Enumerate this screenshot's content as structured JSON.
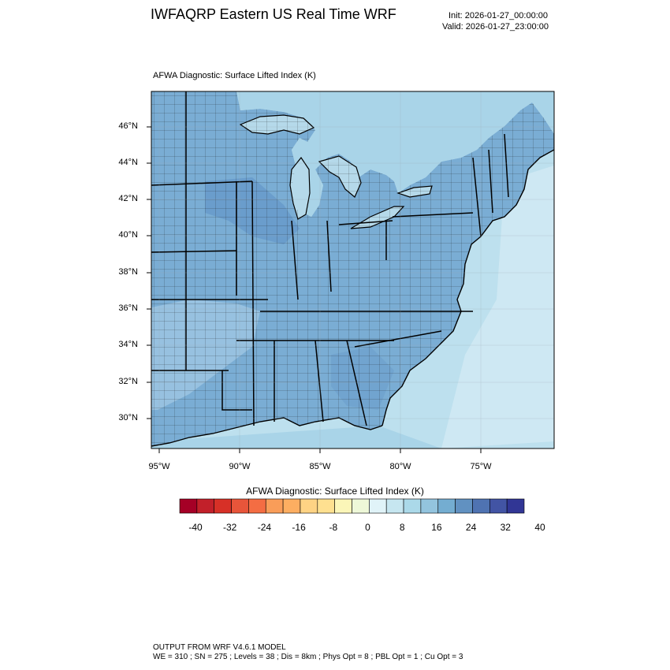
{
  "header": {
    "title": "IWFAQRP Eastern US Real Time WRF",
    "init": "Init: 2026-01-27_00:00:00",
    "valid": "Valid: 2026-01-27_23:00:00"
  },
  "panel_title": "AFWA Diagnostic: Surface Lifted Index   (K)",
  "map": {
    "field": "Surface Lifted Index",
    "lat_labels": [
      "46°N",
      "44°N",
      "42°N",
      "40°N",
      "38°N",
      "36°N",
      "34°N",
      "32°N",
      "30°N"
    ],
    "lon_labels": [
      "95°W",
      "90°W",
      "85°W",
      "80°W",
      "75°W"
    ],
    "colors": {
      "ocean": "#bde0ee",
      "ocean_deep": "#a9d4e8",
      "land_stable": "#7aadd4",
      "land_light": "#b5d9ea",
      "outline": "#000000"
    }
  },
  "colorbar": {
    "title": "AFWA Diagnostic: Surface Lifted Index  (K)",
    "labels": [
      "-40",
      "-32",
      "-24",
      "-16",
      "-8",
      "0",
      "8",
      "16",
      "24",
      "32",
      "40"
    ],
    "colors": [
      "#a50026",
      "#c2202a",
      "#d73027",
      "#e8553a",
      "#f46d43",
      "#f99d59",
      "#fdae61",
      "#fed384",
      "#fee090",
      "#fbf6b8",
      "#eef8d8",
      "#e0f3f8",
      "#c6e6f0",
      "#abd9e9",
      "#93c4de",
      "#74add1",
      "#6191c1",
      "#4f73b2",
      "#4254a4",
      "#313695"
    ]
  },
  "footer": {
    "line1": "OUTPUT FROM WRF V4.6.1 MODEL",
    "line2": "WE = 310 ; SN = 275 ; Levels = 38 ; Dis = 8km ; Phys Opt = 8 ; PBL Opt = 1 ; Cu Opt = 3"
  }
}
